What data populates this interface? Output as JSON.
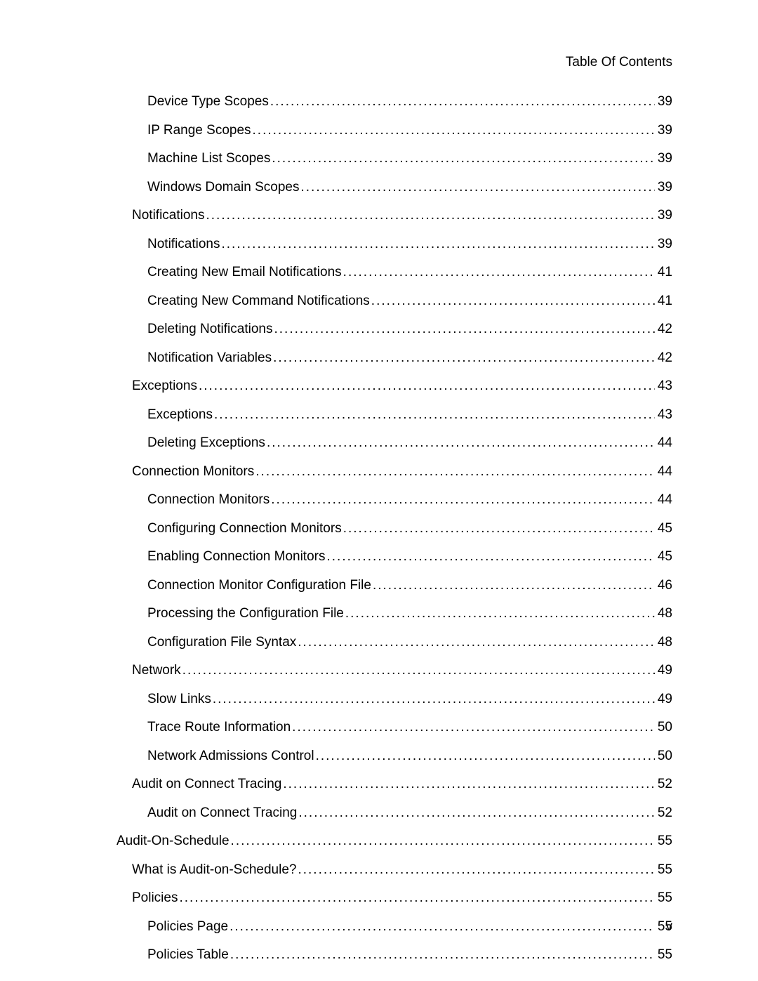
{
  "header_title": "Table Of Contents",
  "page_number": "v",
  "text_color": "#000000",
  "background_color": "#ffffff",
  "font_size": 19,
  "line_spacing": 18.5,
  "indent_step": 22,
  "entries": [
    {
      "title": "Device Type Scopes",
      "page": "39",
      "level": 2
    },
    {
      "title": "IP Range Scopes",
      "page": "39",
      "level": 2
    },
    {
      "title": "Machine List Scopes",
      "page": "39",
      "level": 2
    },
    {
      "title": "Windows Domain Scopes",
      "page": "39",
      "level": 2
    },
    {
      "title": "Notifications",
      "page": "39",
      "level": 1
    },
    {
      "title": "Notifications",
      "page": "39",
      "level": 2
    },
    {
      "title": "Creating New Email Notifications",
      "page": "41",
      "level": 2
    },
    {
      "title": "Creating New Command Notifications",
      "page": "41",
      "level": 2
    },
    {
      "title": "Deleting Notifications",
      "page": "42",
      "level": 2
    },
    {
      "title": "Notification Variables",
      "page": "42",
      "level": 2
    },
    {
      "title": "Exceptions",
      "page": "43",
      "level": 1
    },
    {
      "title": "Exceptions",
      "page": "43",
      "level": 2
    },
    {
      "title": "Deleting Exceptions",
      "page": "44",
      "level": 2
    },
    {
      "title": "Connection Monitors",
      "page": "44",
      "level": 1
    },
    {
      "title": "Connection Monitors",
      "page": "44",
      "level": 2
    },
    {
      "title": "Configuring Connection Monitors",
      "page": "45",
      "level": 2
    },
    {
      "title": "Enabling Connection Monitors",
      "page": "45",
      "level": 2
    },
    {
      "title": "Connection Monitor Configuration File",
      "page": "46",
      "level": 2
    },
    {
      "title": "Processing the Configuration File",
      "page": "48",
      "level": 2
    },
    {
      "title": "Configuration File Syntax",
      "page": "48",
      "level": 2
    },
    {
      "title": "Network",
      "page": "49",
      "level": 1
    },
    {
      "title": "Slow Links",
      "page": "49",
      "level": 2
    },
    {
      "title": "Trace Route Information",
      "page": "50",
      "level": 2
    },
    {
      "title": "Network Admissions Control",
      "page": "50",
      "level": 2
    },
    {
      "title": "Audit on Connect Tracing",
      "page": "52",
      "level": 1
    },
    {
      "title": "Audit on Connect Tracing",
      "page": "52",
      "level": 2
    },
    {
      "title": "Audit-On-Schedule",
      "page": "55",
      "level": 0
    },
    {
      "title": "What is Audit-on-Schedule?",
      "page": "55",
      "level": 1
    },
    {
      "title": "Policies",
      "page": "55",
      "level": 1
    },
    {
      "title": "Policies Page",
      "page": "55",
      "level": 2
    },
    {
      "title": "Policies Table",
      "page": "55",
      "level": 2
    }
  ]
}
